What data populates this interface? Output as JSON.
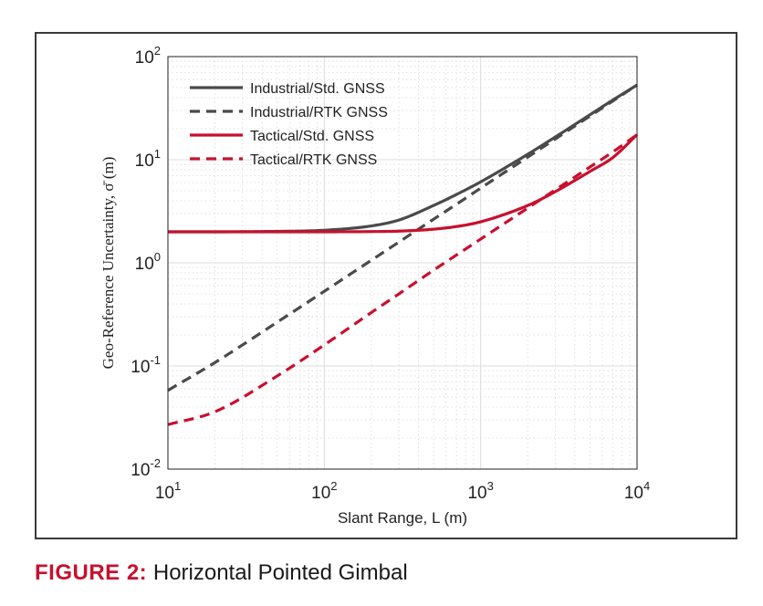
{
  "figure": {
    "label": "FIGURE 2:",
    "caption": "Horizontal Pointed Gimbal"
  },
  "chart_data": {
    "type": "line",
    "xlabel": "Slant Range, L (m)",
    "ylabel": "Geo-Reference Uncertainty, σ̄ (m)",
    "x_scale": "log",
    "y_scale": "log",
    "xlim": [
      10,
      10000
    ],
    "ylim": [
      0.01,
      100
    ],
    "x_ticks": [
      {
        "base": "10",
        "exp": "1"
      },
      {
        "base": "10",
        "exp": "2"
      },
      {
        "base": "10",
        "exp": "3"
      },
      {
        "base": "10",
        "exp": "4"
      }
    ],
    "y_ticks": [
      {
        "base": "10",
        "exp": "-2"
      },
      {
        "base": "10",
        "exp": "-1"
      },
      {
        "base": "10",
        "exp": "0"
      },
      {
        "base": "10",
        "exp": "1"
      },
      {
        "base": "10",
        "exp": "2"
      }
    ],
    "grid": true,
    "minor_grid": true,
    "legend_position": "top-left",
    "x": [
      10,
      20,
      50,
      100,
      200,
      300,
      500,
      700,
      1000,
      2000,
      3000,
      5000,
      7000,
      10000
    ],
    "series": [
      {
        "name": "Industrial/Std. GNSS",
        "color": "#4a4a4a",
        "dash": "solid",
        "values": [
          2.0,
          2.0,
          2.02,
          2.07,
          2.28,
          2.6,
          3.6,
          4.6,
          6.1,
          11.3,
          16.6,
          27.3,
          37.9,
          53.0
        ]
      },
      {
        "name": "Industrial/RTK GNSS",
        "color": "#4a4a4a",
        "dash": "dashed",
        "values": [
          0.058,
          0.108,
          0.266,
          0.53,
          1.06,
          1.59,
          2.65,
          3.7,
          5.3,
          10.6,
          15.9,
          26.5,
          37.1,
          53.0
        ]
      },
      {
        "name": "Tactical/Std. GNSS",
        "color": "#c8102e",
        "dash": "solid",
        "values": [
          2.0,
          2.0,
          2.0,
          2.0,
          2.01,
          2.03,
          2.12,
          2.25,
          2.5,
          3.6,
          4.9,
          7.7,
          10.5,
          17.5
        ]
      },
      {
        "name": "Tactical/RTK GNSS",
        "color": "#c8102e",
        "dash": "dashed",
        "values": [
          0.027,
          0.036,
          0.08,
          0.16,
          0.33,
          0.5,
          0.85,
          1.19,
          1.7,
          3.4,
          5.1,
          8.5,
          11.9,
          17.5
        ]
      }
    ]
  }
}
